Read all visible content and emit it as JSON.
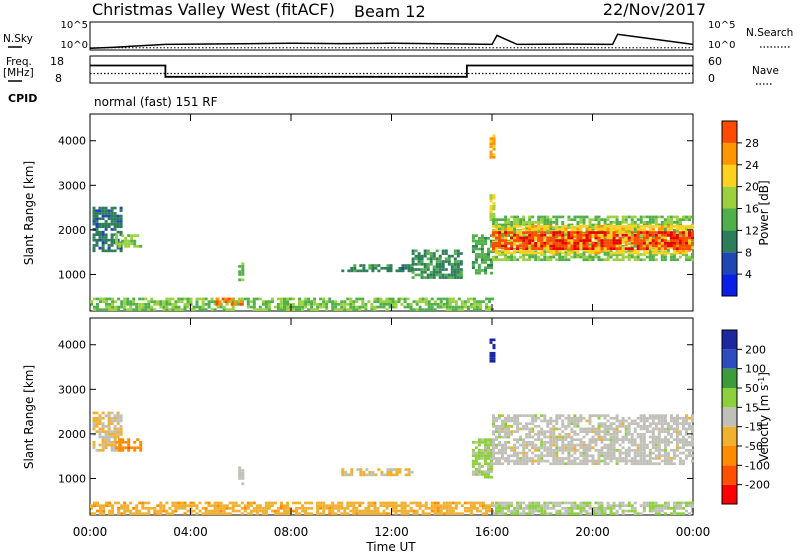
{
  "header": {
    "title": "Christmas Valley West (fitACF)",
    "beam": "Beam 12",
    "date": "22/Nov/2017"
  },
  "status_panels": {
    "nsky_label": "N.Sky",
    "nsearch_label": "N.Search",
    "freq_label": "Freq.",
    "freq_unit": "[MHz]",
    "nave_label": "Nave",
    "cpid_label": "CPID",
    "noise_ticks": [
      "10^5",
      "10^0"
    ],
    "freq_ticks": [
      "18",
      "8"
    ],
    "nave_ticks": [
      "60",
      "0"
    ],
    "program": "normal (fast) 151 RF"
  },
  "colors": {
    "power": [
      "#0a1ee6",
      "#1e46b4",
      "#2e7d5a",
      "#4fb04a",
      "#9ad13c",
      "#ffd21e",
      "#ff9600",
      "#ff4b00",
      "#e60000"
    ],
    "velocity": [
      "#ff0000",
      "#ff5000",
      "#ff8c00",
      "#f0b030",
      "#c0c0b8",
      "#8cd03c",
      "#3c9c3c",
      "#2c4cc0",
      "#1c28a0"
    ]
  },
  "chart_data": [
    {
      "type": "line",
      "title": "N.Sky / N.Search noise",
      "ylim_log10": [
        0,
        5
      ],
      "xlim_hours": [
        0,
        24
      ],
      "series": [
        {
          "name": "N.Sky",
          "x": [
            0,
            1,
            3,
            6,
            8,
            10,
            12,
            14,
            16,
            16.2,
            17,
            19,
            20.8,
            21,
            24
          ],
          "y_log10": [
            0.3,
            0.5,
            1.0,
            1.1,
            1.2,
            1.15,
            1.2,
            1.1,
            1.0,
            2.6,
            1.0,
            1.05,
            1.0,
            2.8,
            1.0
          ]
        },
        {
          "name": "N.Search",
          "x": [
            0,
            24
          ],
          "y_log10": [
            0.4,
            0.4
          ]
        }
      ]
    },
    {
      "type": "line",
      "title": "Freq. / Nave",
      "ylim_freq": [
        8,
        18
      ],
      "ylim_nave": [
        0,
        60
      ],
      "xlim_hours": [
        0,
        24
      ],
      "series": [
        {
          "name": "Freq.",
          "x": [
            0,
            3,
            3,
            15,
            15,
            24
          ],
          "y": [
            14.5,
            14.5,
            10.3,
            10.3,
            14.5,
            14.5
          ]
        },
        {
          "name": "Nave",
          "x": [
            0,
            24
          ],
          "y": [
            21,
            21
          ]
        }
      ]
    },
    {
      "type": "heatmap",
      "title": "Power [dB]",
      "xlabel": "",
      "ylabel": "Slant Range [km]",
      "xlim_hours": [
        0,
        24
      ],
      "ylim_km": [
        180,
        4600
      ],
      "yticks": [
        "1000",
        "2000",
        "3000",
        "4000"
      ],
      "colorbar_label": "Power [dB]",
      "colorbar_ticks": [
        "4",
        "8",
        "12",
        "16",
        "20",
        "24",
        "28"
      ],
      "colorbar_range": [
        0,
        32
      ],
      "regions": [
        {
          "t0": 0.1,
          "t1": 1.2,
          "r0": 1500,
          "r1": 2500,
          "value": 8
        },
        {
          "t0": 1.0,
          "t1": 2.0,
          "r0": 1600,
          "r1": 1850,
          "value": 15
        },
        {
          "t0": 0.0,
          "t1": 16.0,
          "r0": 180,
          "r1": 480,
          "value": 14
        },
        {
          "t0": 5.0,
          "t1": 6.0,
          "r0": 300,
          "r1": 450,
          "value": 24
        },
        {
          "t0": 5.9,
          "t1": 6.1,
          "r0": 850,
          "r1": 1250,
          "value": 14
        },
        {
          "t0": 10.0,
          "t1": 12.8,
          "r0": 1050,
          "r1": 1200,
          "value": 9
        },
        {
          "t0": 12.8,
          "t1": 14.8,
          "r0": 900,
          "r1": 1550,
          "value": 10
        },
        {
          "t0": 15.2,
          "t1": 16.0,
          "r0": 1000,
          "r1": 1900,
          "value": 12
        },
        {
          "t0": 15.9,
          "t1": 16.1,
          "r0": 3600,
          "r1": 4100,
          "value": 22
        },
        {
          "t0": 15.9,
          "t1": 16.1,
          "r0": 2200,
          "r1": 2800,
          "value": 18
        },
        {
          "t0": 16.0,
          "t1": 24.0,
          "r0": 1300,
          "r1": 2300,
          "value": 14
        },
        {
          "t0": 16.0,
          "t1": 24.0,
          "r0": 1450,
          "r1": 2100,
          "value": 20
        },
        {
          "t0": 16.0,
          "t1": 24.0,
          "r0": 1550,
          "r1": 1950,
          "value": 28
        }
      ]
    },
    {
      "type": "heatmap",
      "title": "Velocity [m s^-1]",
      "xlabel": "Time UT",
      "ylabel": "Slant Range [km]",
      "xlim_hours": [
        0,
        24
      ],
      "ylim_km": [
        180,
        4600
      ],
      "yticks": [
        "1000",
        "2000",
        "3000",
        "4000"
      ],
      "xticks": [
        "00:00",
        "04:00",
        "08:00",
        "12:00",
        "16:00",
        "20:00",
        "00:00"
      ],
      "colorbar_label": "Velocity [m s^-1]",
      "colorbar_ticks": [
        "-200",
        "-100",
        "-50",
        "-15",
        "15",
        "50",
        "100",
        "200"
      ],
      "colorbar_range": [
        -250,
        250
      ],
      "regions": [
        {
          "t0": 0.1,
          "t1": 1.2,
          "r0": 1600,
          "r1": 2500,
          "value": -30
        },
        {
          "t0": 1.0,
          "t1": 2.0,
          "r0": 1600,
          "r1": 1850,
          "value": -110
        },
        {
          "t0": 0.0,
          "t1": 16.0,
          "r0": 180,
          "r1": 480,
          "value": -60
        },
        {
          "t0": 5.9,
          "t1": 6.1,
          "r0": 850,
          "r1": 1250,
          "value": 0
        },
        {
          "t0": 10.0,
          "t1": 12.8,
          "r0": 1050,
          "r1": 1200,
          "value": -40
        },
        {
          "t0": 15.2,
          "t1": 16.0,
          "r0": 1000,
          "r1": 1900,
          "value": 40
        },
        {
          "t0": 15.9,
          "t1": 16.1,
          "r0": 3600,
          "r1": 4100,
          "value": 230
        },
        {
          "t0": 16.0,
          "t1": 24.0,
          "r0": 1300,
          "r1": 2400,
          "value": 0
        },
        {
          "t0": 16.0,
          "t1": 24.0,
          "r0": 180,
          "r1": 480,
          "value": 30
        }
      ]
    }
  ]
}
